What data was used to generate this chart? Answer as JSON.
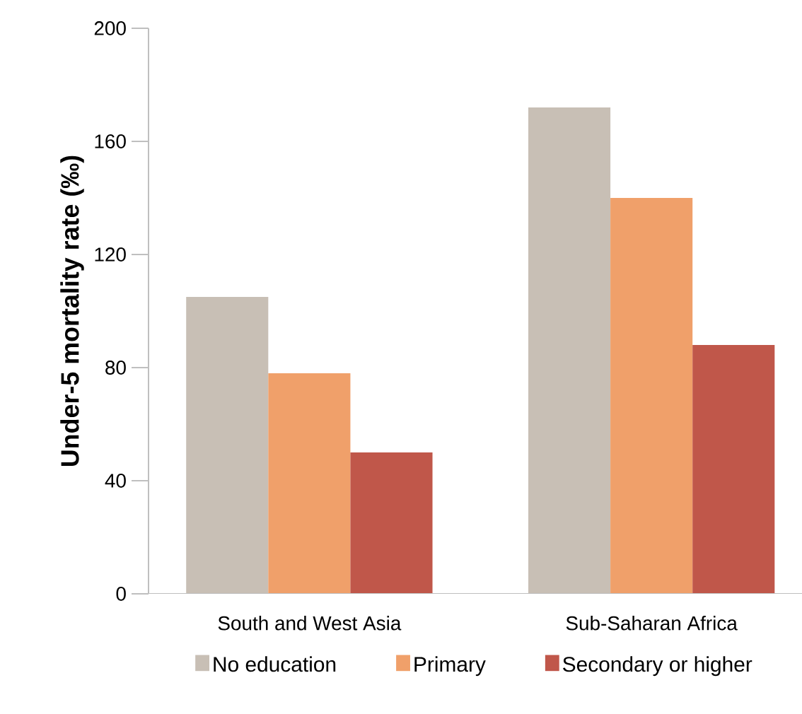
{
  "chart_data": {
    "type": "bar",
    "ylabel": "Under-5 mortality rate (‰)",
    "categories": [
      "South and West Asia",
      "Sub-Saharan Africa"
    ],
    "series": [
      {
        "name": "No education",
        "color": "#c8bfb5",
        "values": [
          105,
          172
        ]
      },
      {
        "name": "Primary",
        "color": "#f0a06a",
        "values": [
          78,
          140
        ]
      },
      {
        "name": "Secondary or higher",
        "color": "#c0574a",
        "values": [
          50,
          88
        ]
      }
    ],
    "ylim": [
      0,
      200
    ],
    "yticks": [
      0,
      40,
      80,
      120,
      160,
      200
    ],
    "legend": "bottom"
  }
}
